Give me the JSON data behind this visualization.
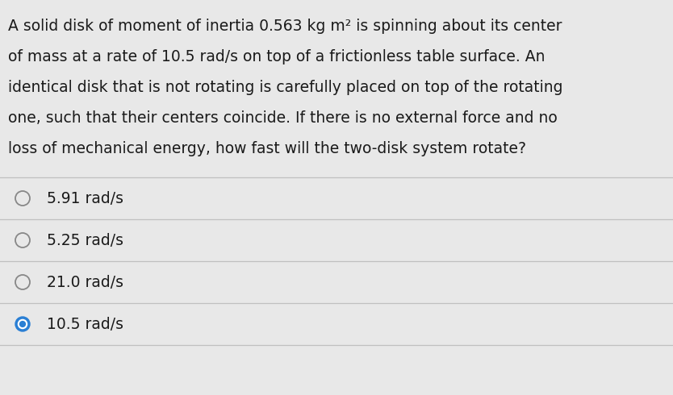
{
  "background_color": "#e8e8e8",
  "question_text": [
    "A solid disk of moment of inertia 0.563 kg m² is spinning about its center",
    "of mass at a rate of 10.5 rad/s on top of a frictionless table surface. An",
    "identical disk that is not rotating is carefully placed on top of the rotating",
    "one, such that their centers coincide. If there is no external force and no",
    "loss of mechanical energy, how fast will the two-disk system rotate?"
  ],
  "options": [
    {
      "label": "5.91 rad/s",
      "selected": false
    },
    {
      "label": "5.25 rad/s",
      "selected": false
    },
    {
      "label": "21.0 rad/s",
      "selected": false
    },
    {
      "label": "10.5 rad/s",
      "selected": true
    }
  ],
  "font_size_question": 13.5,
  "font_size_options": 13.5,
  "text_color": "#1a1a1a",
  "line_color": "#c0c0c0",
  "circle_edge_color": "#888888",
  "circle_color_filled": "#2a7fd4",
  "fig_width": 8.34,
  "fig_height": 4.9,
  "dpi": 100
}
